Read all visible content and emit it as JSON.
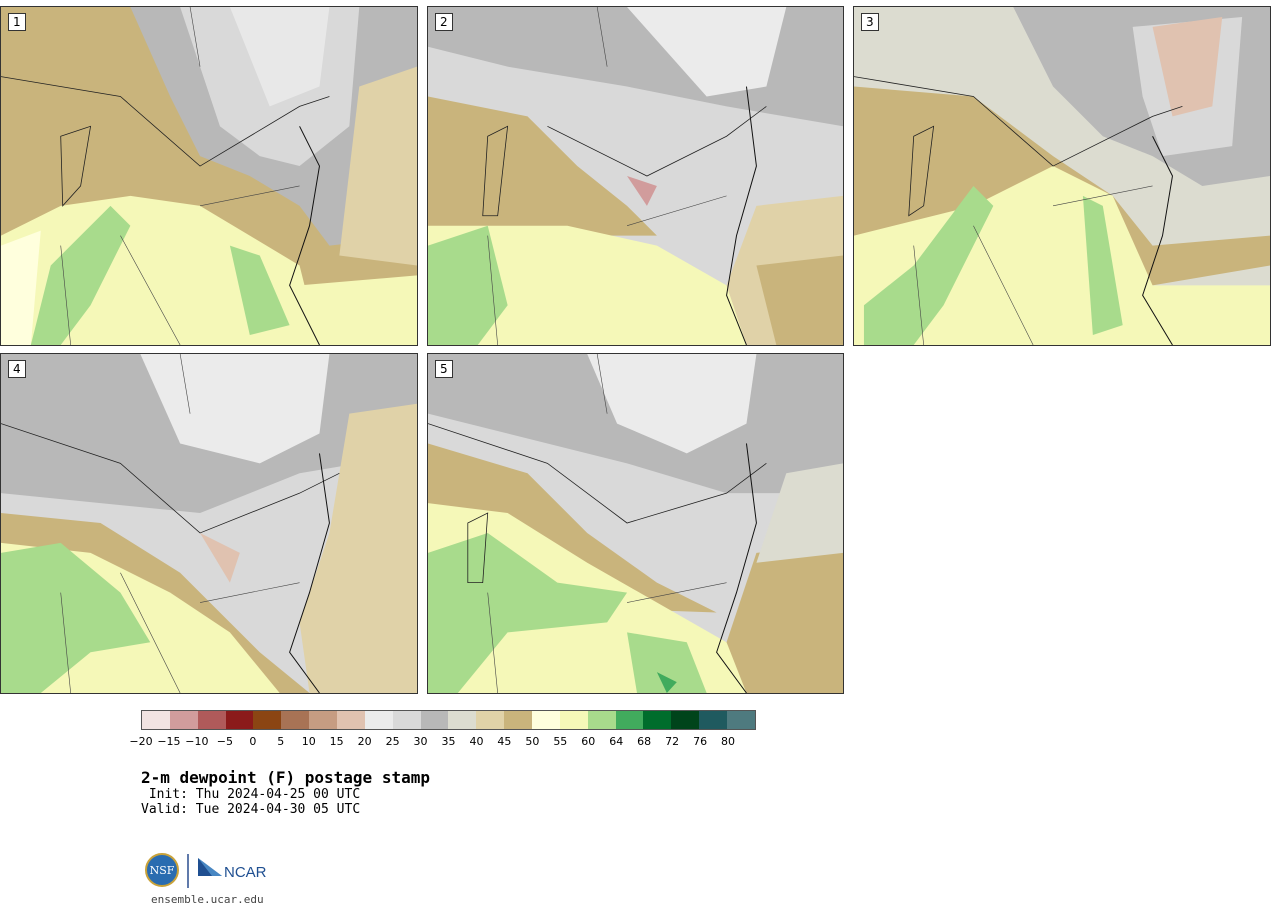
{
  "panels": [
    {
      "label": "1"
    },
    {
      "label": "2"
    },
    {
      "label": "3"
    },
    {
      "label": "4"
    },
    {
      "label": "5"
    }
  ],
  "colorbar": {
    "colors": [
      "#f2e4e2",
      "#d19c9c",
      "#b05a5a",
      "#8b1a1a",
      "#8b4513",
      "#a87355",
      "#c69c82",
      "#e0c2b0",
      "#ebebeb",
      "#d9d9d9",
      "#b8b8b8",
      "#dcdcd0",
      "#e0d2a8",
      "#c9b47c",
      "#ffffdd",
      "#f5f8b8",
      "#a8db8c",
      "#41ab5d",
      "#006d2c",
      "#00441b",
      "#1f5a5f",
      "#4e7a7f"
    ],
    "ticks": [
      "−20",
      "−15",
      "−10",
      "−5",
      "0",
      "5",
      "10",
      "15",
      "20",
      "25",
      "30",
      "35",
      "40",
      "45",
      "50",
      "55",
      "60",
      "64",
      "68",
      "72",
      "76",
      "80"
    ]
  },
  "title": "2-m dewpoint (F) postage stamp",
  "init": " Init: Thu 2024-04-25 00 UTC",
  "valid": "Valid: Tue 2024-04-30 05 UTC",
  "logo": {
    "nsf": "NSF",
    "ncar": "NCAR"
  },
  "site": "ensemble.ucar.edu"
}
